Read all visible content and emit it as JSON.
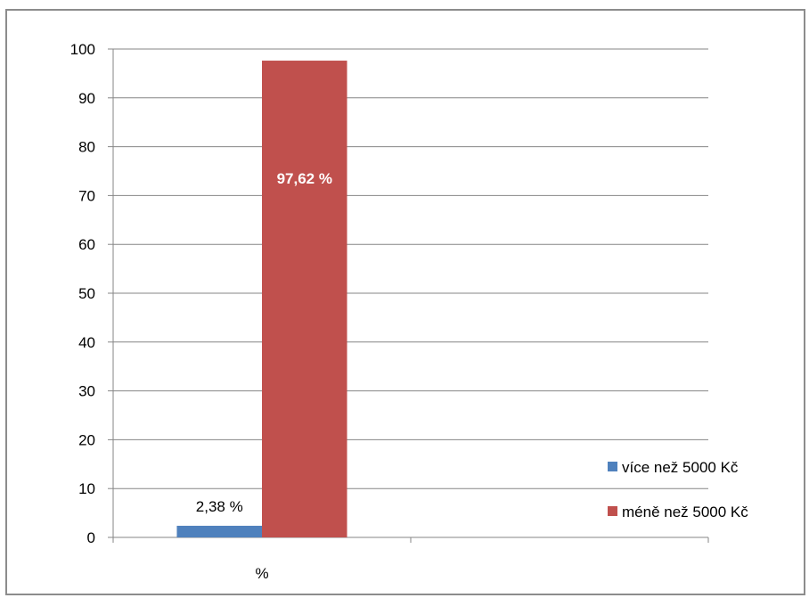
{
  "chart_data": {
    "type": "bar",
    "categories": [
      "%"
    ],
    "series": [
      {
        "name": "více než 5000 Kč",
        "values": [
          2.38
        ],
        "label": "2,38 %",
        "color": "#4f81bd"
      },
      {
        "name": "méně než 5000 Kč",
        "values": [
          97.62
        ],
        "label": "97,62 %",
        "color": "#c0504d"
      }
    ],
    "ylim": [
      0,
      100
    ],
    "yticks": [
      0,
      10,
      20,
      30,
      40,
      50,
      60,
      70,
      80,
      90,
      100
    ],
    "grid": true,
    "legend_position": "right",
    "title": "",
    "xlabel": "",
    "ylabel": ""
  }
}
